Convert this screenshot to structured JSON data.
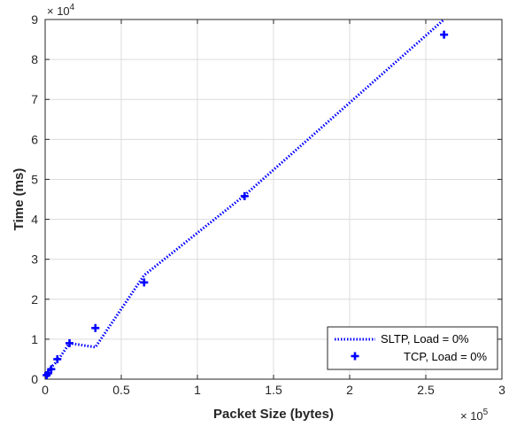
{
  "chart_data": {
    "type": "line",
    "title": "",
    "xlabel": "Packet Size (bytes)",
    "ylabel": "Time (ms)",
    "x_multiplier_label": "× 10",
    "x_multiplier_exp": "5",
    "y_multiplier_label": "× 10",
    "y_multiplier_exp": "4",
    "x_scale": 100000,
    "y_scale": 10000,
    "xlim": [
      0,
      3
    ],
    "ylim": [
      0,
      9
    ],
    "x_ticks": [
      0,
      0.5,
      1,
      1.5,
      2,
      2.5,
      3
    ],
    "x_tick_labels": [
      "0",
      "0.5",
      "1",
      "1.5",
      "2",
      "2.5",
      "3"
    ],
    "y_ticks": [
      0,
      1,
      2,
      3,
      4,
      5,
      6,
      7,
      8,
      9
    ],
    "y_tick_labels": [
      "0",
      "1",
      "2",
      "3",
      "4",
      "5",
      "6",
      "7",
      "8",
      "9"
    ],
    "grid": true,
    "legend_position": "bottom-right",
    "series": [
      {
        "name": "SLTP, Load = 0%",
        "style": "dotted-line",
        "color": "#0000ff",
        "x": [
          0.01,
          0.02,
          0.04,
          0.08,
          0.16,
          0.33,
          0.65,
          1.31,
          2.62
        ],
        "y": [
          0.15,
          0.2,
          0.3,
          0.45,
          0.9,
          0.8,
          2.6,
          4.6,
          9.0
        ]
      },
      {
        "name": "TCP, Load = 0%",
        "style": "plus-marker",
        "color": "#0000ff",
        "x": [
          0.01,
          0.02,
          0.04,
          0.08,
          0.16,
          0.33,
          0.65,
          1.31,
          2.62
        ],
        "y": [
          0.1,
          0.15,
          0.25,
          0.5,
          0.9,
          1.28,
          2.42,
          4.58,
          8.62
        ]
      }
    ]
  }
}
